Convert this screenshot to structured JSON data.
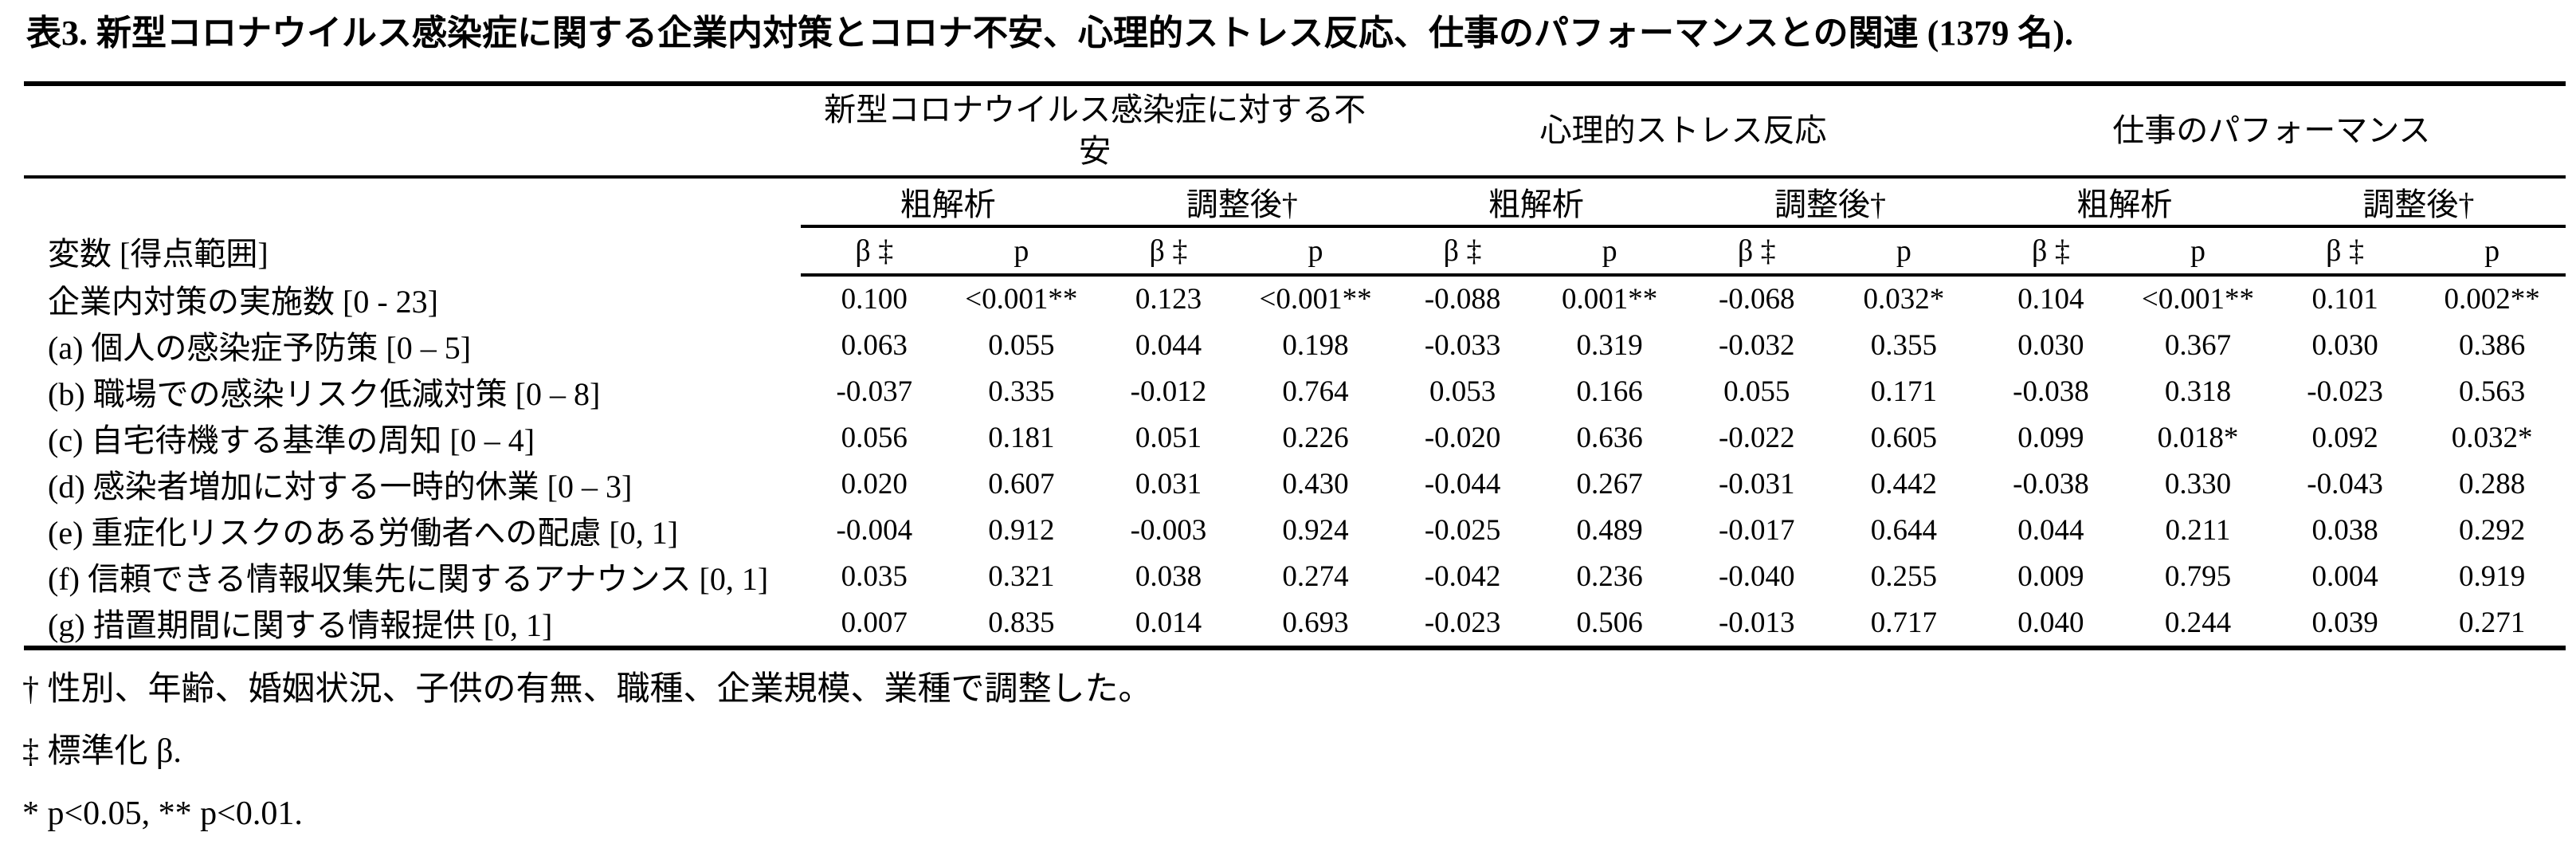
{
  "title": "表3. 新型コロナウイルス感染症に関する企業内対策とコロナ不安、心理的ストレス反応、仕事のパフォーマンスとの関連 (1379 名).",
  "table": {
    "variable_header": "変数 [得点範囲]",
    "groups": [
      {
        "label": "新型コロナウイルス感染症に対する不安"
      },
      {
        "label": "心理的ストレス反応"
      },
      {
        "label": "仕事のパフォーマンス"
      }
    ],
    "analysis_headers": {
      "crude": "粗解析",
      "adjusted": "調整後†"
    },
    "stat_headers": {
      "beta": "β ‡",
      "p": "p"
    },
    "rows": [
      {
        "label": "企業内対策の実施数 [0 - 23]",
        "values": [
          "0.100",
          "<0.001**",
          "0.123",
          "<0.001**",
          "-0.088",
          "0.001**",
          "-0.068",
          "0.032*",
          "0.104",
          "<0.001**",
          "0.101",
          "0.002**"
        ]
      },
      {
        "label": "(a) 個人の感染症予防策 [0 – 5]",
        "values": [
          "0.063",
          "0.055",
          "0.044",
          "0.198",
          "-0.033",
          "0.319",
          "-0.032",
          "0.355",
          "0.030",
          "0.367",
          "0.030",
          "0.386"
        ]
      },
      {
        "label": "(b) 職場での感染リスク低減対策 [0 – 8]",
        "values": [
          "-0.037",
          "0.335",
          "-0.012",
          "0.764",
          "0.053",
          "0.166",
          "0.055",
          "0.171",
          "-0.038",
          "0.318",
          "-0.023",
          "0.563"
        ]
      },
      {
        "label": "(c) 自宅待機する基準の周知 [0 – 4]",
        "values": [
          "0.056",
          "0.181",
          "0.051",
          "0.226",
          "-0.020",
          "0.636",
          "-0.022",
          "0.605",
          "0.099",
          "0.018*",
          "0.092",
          "0.032*"
        ]
      },
      {
        "label": "(d) 感染者増加に対する一時的休業 [0 – 3]",
        "values": [
          "0.020",
          "0.607",
          "0.031",
          "0.430",
          "-0.044",
          "0.267",
          "-0.031",
          "0.442",
          "-0.038",
          "0.330",
          "-0.043",
          "0.288"
        ]
      },
      {
        "label": "(e) 重症化リスクのある労働者への配慮 [0, 1]",
        "values": [
          "-0.004",
          "0.912",
          "-0.003",
          "0.924",
          "-0.025",
          "0.489",
          "-0.017",
          "0.644",
          "0.044",
          "0.211",
          "0.038",
          "0.292"
        ]
      },
      {
        "label": "(f) 信頼できる情報収集先に関するアナウンス [0, 1]",
        "values": [
          "0.035",
          "0.321",
          "0.038",
          "0.274",
          "-0.042",
          "0.236",
          "-0.040",
          "0.255",
          "0.009",
          "0.795",
          "0.004",
          "0.919"
        ]
      },
      {
        "label": "(g) 措置期間に関する情報提供 [0, 1]",
        "values": [
          "0.007",
          "0.835",
          "0.014",
          "0.693",
          "-0.023",
          "0.506",
          "-0.013",
          "0.717",
          "0.040",
          "0.244",
          "0.039",
          "0.271"
        ]
      }
    ]
  },
  "footnotes": {
    "adjustment": "† 性別、年齢、婚姻状況、子供の有無、職種、企業規模、業種で調整した。",
    "beta": "‡ 標準化 β.",
    "significance": "* p<0.05, ** p<0.01."
  }
}
